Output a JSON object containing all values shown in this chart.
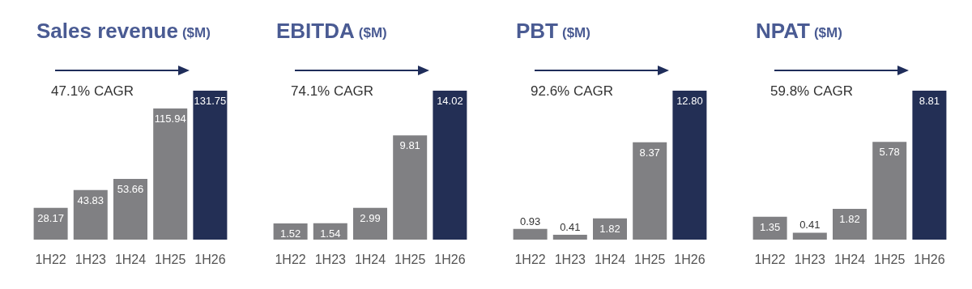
{
  "chart_data": [
    {
      "type": "bar",
      "title": "Sales revenue",
      "subtitle": "($M)",
      "categories": [
        "1H22",
        "1H23",
        "1H24",
        "1H25",
        "1H26"
      ],
      "values": [
        28.17,
        43.83,
        53.66,
        115.94,
        131.75
      ],
      "colors": [
        "#808083",
        "#808083",
        "#808083",
        "#808083",
        "#232f55"
      ],
      "data_labels": true,
      "annotations": [
        "47.1% CAGR"
      ]
    },
    {
      "type": "bar",
      "title": "EBITDA",
      "subtitle": "($M)",
      "categories": [
        "1H22",
        "1H23",
        "1H24",
        "1H25",
        "1H26"
      ],
      "values": [
        1.52,
        1.54,
        2.99,
        9.81,
        14.02
      ],
      "colors": [
        "#808083",
        "#808083",
        "#808083",
        "#808083",
        "#232f55"
      ],
      "data_labels": true,
      "annotations": [
        "74.1% CAGR"
      ]
    },
    {
      "type": "bar",
      "title": "PBT",
      "subtitle": "($M)",
      "categories": [
        "1H22",
        "1H23",
        "1H24",
        "1H25",
        "1H26"
      ],
      "values": [
        0.93,
        0.41,
        1.82,
        8.37,
        12.8
      ],
      "value_labels": [
        "0.93",
        "0.41",
        "1.82",
        "8.37",
        "12.80"
      ],
      "colors": [
        "#808083",
        "#808083",
        "#808083",
        "#808083",
        "#232f55"
      ],
      "annotations": [
        "92.6% CAGR"
      ]
    },
    {
      "type": "bar",
      "title": "NPAT",
      "subtitle": "($M)",
      "categories": [
        "1H22",
        "1H23",
        "1H24",
        "1H25",
        "1H26"
      ],
      "values": [
        1.35,
        0.41,
        1.82,
        5.78,
        8.81
      ],
      "colors": [
        "#808083",
        "#808083",
        "#808083",
        "#808083",
        "#232f55"
      ],
      "data_labels": true,
      "annotations": [
        "59.8% CAGR"
      ]
    }
  ]
}
